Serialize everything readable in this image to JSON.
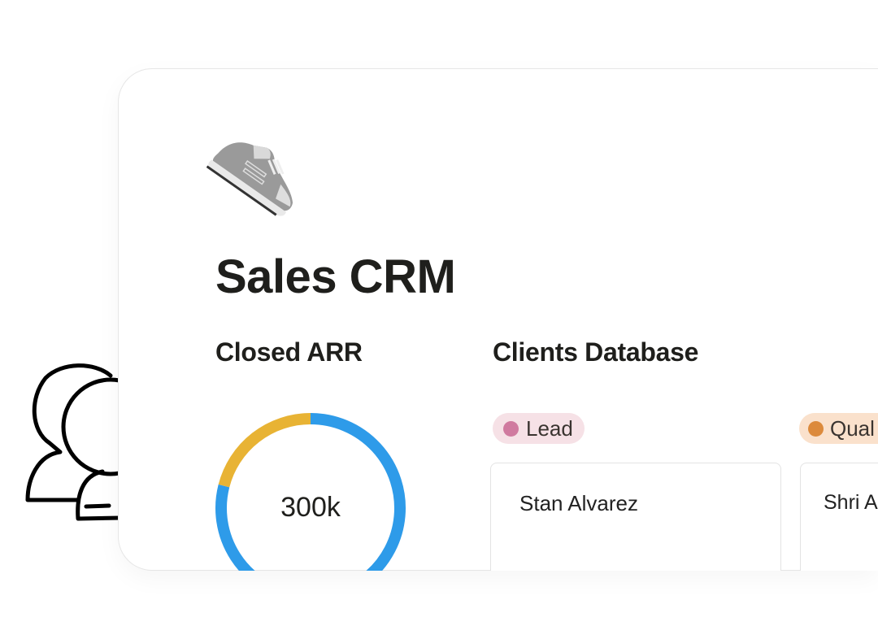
{
  "page": {
    "title": "Sales CRM",
    "icon": "sneaker-icon"
  },
  "closed_arr": {
    "heading": "Closed ARR",
    "value": "300k",
    "segments": [
      {
        "color": "#2e9be9",
        "fraction": 0.79
      },
      {
        "color": "#e8b334",
        "fraction": 0.21
      }
    ]
  },
  "clients_database": {
    "heading": "Clients Database",
    "columns": [
      {
        "status": "Lead",
        "dot_color": "#d07a9f",
        "bg": "#f6e1e6",
        "cards": [
          {
            "name": "Stan Alvarez"
          }
        ]
      },
      {
        "status": "Qual",
        "dot_color": "#dc8a3c",
        "bg": "#fae1cc",
        "cards": [
          {
            "name": "Shri A"
          }
        ]
      }
    ]
  },
  "decoration": {
    "icon": "people-icon"
  }
}
